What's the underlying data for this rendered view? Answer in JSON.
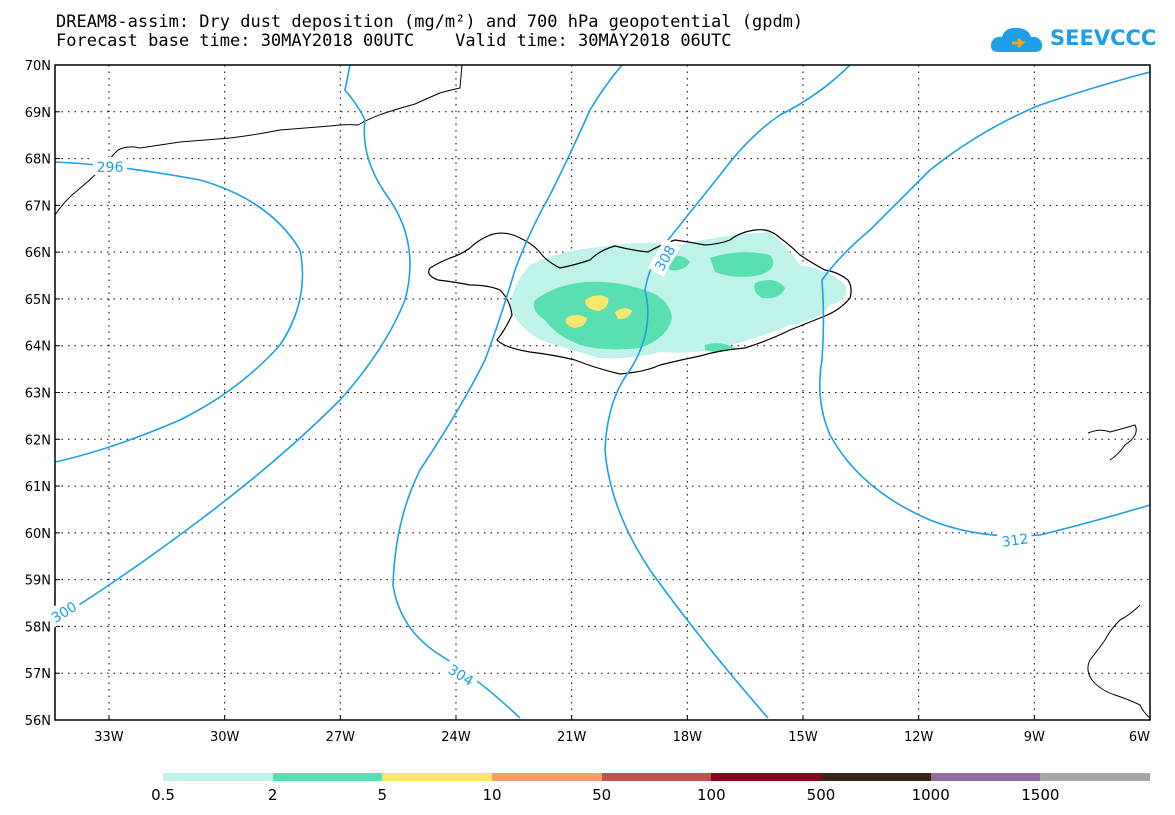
{
  "title": {
    "line1": "DREAM8-assim: Dry dust deposition (mg/m²) and 700 hPa geopotential (gpdm)",
    "line2": "Forecast base time: 30MAY2018 00UTC    Valid time: 30MAY2018 06UTC"
  },
  "logo": {
    "text": "SEEVCCC",
    "icon": "cloud-icon"
  },
  "axes": {
    "lat_labels": [
      "70N",
      "69N",
      "68N",
      "67N",
      "66N",
      "65N",
      "64N",
      "63N",
      "62N",
      "61N",
      "60N",
      "59N",
      "58N",
      "57N",
      "56N"
    ],
    "lon_labels": [
      "33W",
      "30W",
      "27W",
      "24W",
      "21W",
      "18W",
      "15W",
      "12W",
      "9W",
      "6W"
    ],
    "lat_range": [
      56,
      70
    ],
    "lon_range": [
      -34.4,
      -6
    ],
    "grid": true
  },
  "contours": {
    "color": "#1e9fe8",
    "labels": [
      "296",
      "300",
      "304",
      "308",
      "312"
    ]
  },
  "colorbar": {
    "colors": [
      "#bff3ea",
      "#5adfb3",
      "#f8e76b",
      "#f29e6d",
      "#b8584a",
      "#890420",
      "#3a2519",
      "#956c9e",
      "#a5a5a5"
    ],
    "labels": [
      "0.5",
      "2",
      "5",
      "10",
      "50",
      "100",
      "500",
      "1000",
      "1500"
    ]
  }
}
